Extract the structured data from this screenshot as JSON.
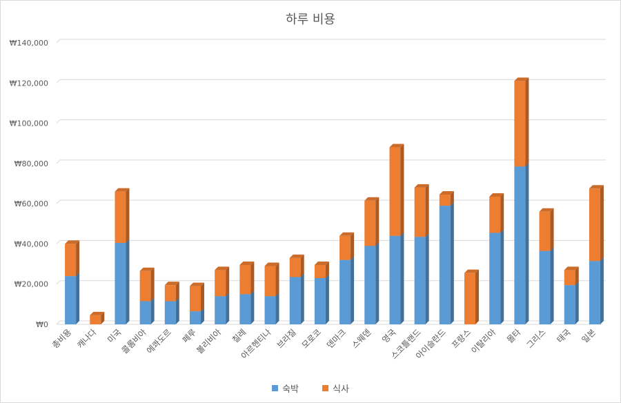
{
  "chart_data": {
    "type": "bar",
    "stacked": true,
    "title": "하루 비용",
    "categories": [
      "총비용",
      "캐나다",
      "미국",
      "콜롬비아",
      "에콰도르",
      "페루",
      "볼리비아",
      "칠레",
      "아르헨티나",
      "브라질",
      "모로코",
      "덴마크",
      "스웨덴",
      "영국",
      "스코틀랜드",
      "아이슬란드",
      "프랑스",
      "이탈리아",
      "몰타",
      "그리스",
      "태국",
      "일본"
    ],
    "series": [
      {
        "name": "숙박",
        "color": "#5b9bd5",
        "values": [
          24000,
          0,
          40500,
          11500,
          11500,
          6500,
          14000,
          15000,
          14000,
          23500,
          23000,
          32000,
          39000,
          44000,
          43500,
          59000,
          0,
          45500,
          78500,
          36500,
          19500,
          31500
        ]
      },
      {
        "name": "식사",
        "color": "#ed7d31",
        "values": [
          16000,
          4500,
          25500,
          15000,
          8000,
          12500,
          13000,
          14500,
          15000,
          9500,
          6500,
          12000,
          22500,
          44000,
          24500,
          5500,
          25500,
          18000,
          42500,
          19500,
          7500,
          36000
        ]
      }
    ],
    "ylim": [
      0,
      140000
    ],
    "yticks": [
      0,
      20000,
      40000,
      60000,
      80000,
      100000,
      120000,
      140000
    ],
    "ytick_labels": [
      "₩0",
      "₩20,000",
      "₩40,000",
      "₩60,000",
      "₩80,000",
      "₩100,000",
      "₩120,000",
      "₩140,000"
    ],
    "grid": true,
    "legend_position": "bottom"
  }
}
